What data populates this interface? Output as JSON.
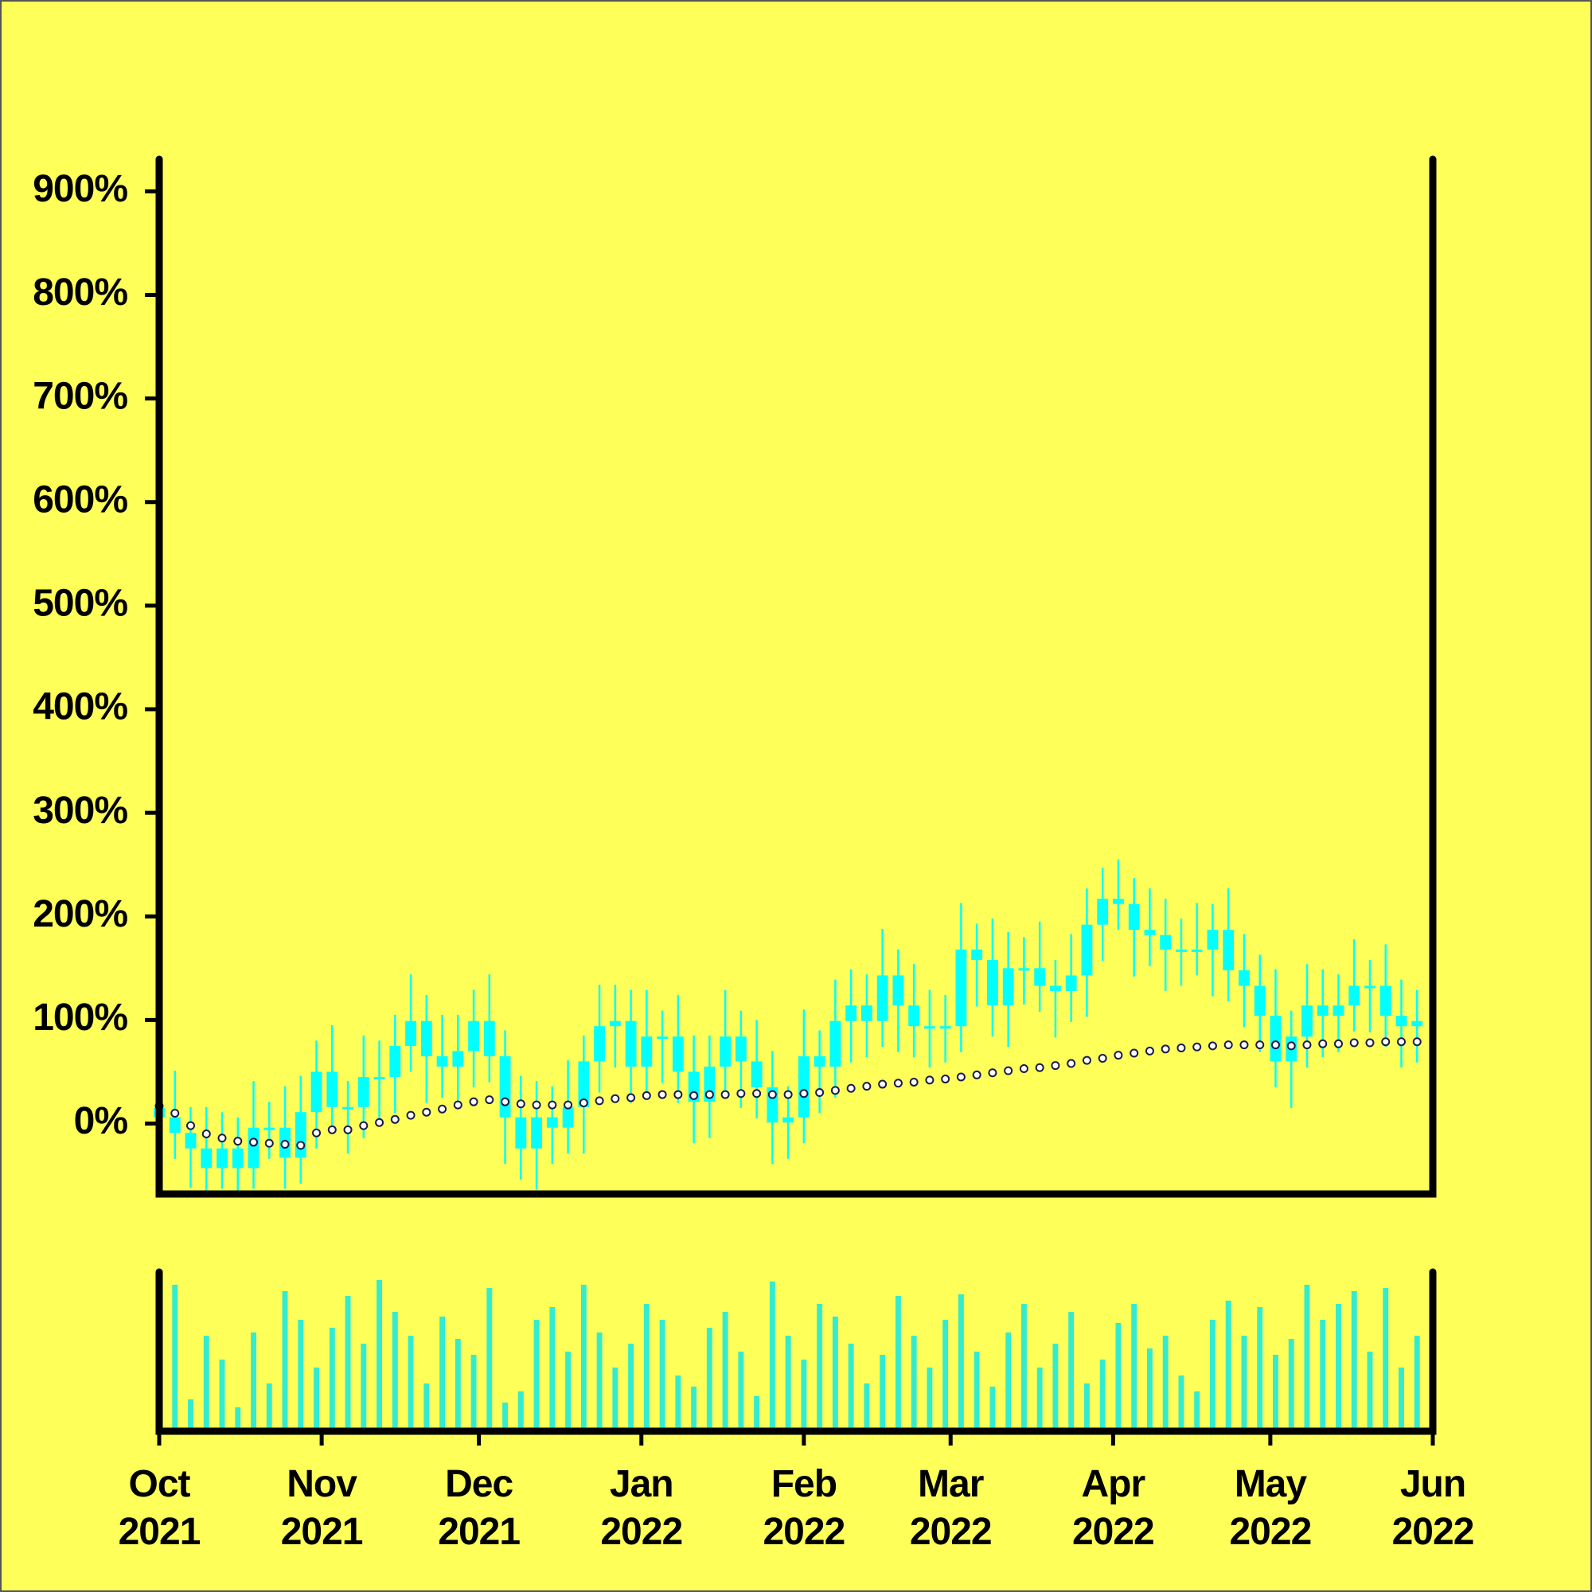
{
  "chart_data": {
    "type": "candlestick",
    "x": [
      0,
      3,
      6,
      9,
      12,
      15,
      18,
      21,
      24,
      27,
      30,
      33,
      36,
      39,
      42,
      45,
      48,
      51,
      54,
      57,
      60,
      63,
      66,
      69,
      72,
      75,
      78,
      81,
      84,
      87,
      90,
      93,
      96,
      99,
      102,
      105,
      108,
      111,
      114,
      117,
      120,
      123,
      126,
      129,
      132,
      135,
      138,
      141,
      144,
      147,
      150,
      153,
      156,
      159,
      162,
      165,
      168,
      171,
      174,
      177,
      180,
      183,
      186,
      189,
      192,
      195,
      198,
      201,
      204,
      207,
      210,
      213,
      216,
      219,
      222,
      225,
      228,
      231,
      234,
      237,
      240
    ],
    "open": [
      15,
      6,
      -9,
      -24,
      -43,
      -24,
      -43,
      -4,
      -4,
      -33,
      11,
      50,
      16,
      16,
      45,
      45,
      75,
      99,
      65,
      55,
      70,
      99,
      65,
      6,
      -24,
      6,
      -4,
      16,
      60,
      94,
      99,
      55,
      84,
      84,
      50,
      21,
      55,
      84,
      60,
      35,
      1,
      6,
      65,
      55,
      99,
      114,
      99,
      143,
      114,
      94,
      94,
      94,
      168,
      158,
      114,
      150,
      150,
      133,
      128,
      143,
      192,
      217,
      212,
      187,
      182,
      168,
      168,
      168,
      187,
      148,
      133,
      104,
      60,
      84,
      114,
      104,
      114,
      133,
      133,
      104,
      94
    ],
    "high": [
      45,
      51,
      16,
      16,
      11,
      6,
      41,
      21,
      36,
      46,
      80,
      95,
      41,
      85,
      80,
      105,
      144,
      124,
      105,
      105,
      129,
      144,
      90,
      46,
      41,
      36,
      61,
      85,
      134,
      134,
      129,
      129,
      109,
      124,
      85,
      85,
      129,
      109,
      100,
      70,
      36,
      110,
      90,
      139,
      149,
      144,
      188,
      168,
      154,
      129,
      124,
      213,
      193,
      198,
      185,
      180,
      195,
      158,
      183,
      227,
      247,
      255,
      237,
      227,
      217,
      198,
      213,
      212,
      227,
      183,
      163,
      149,
      109,
      154,
      149,
      144,
      178,
      158,
      173,
      139,
      129
    ],
    "low": [
      -29,
      -34,
      -62,
      -65,
      -63,
      -65,
      -63,
      -34,
      -63,
      -58,
      -24,
      -9,
      -29,
      -14,
      5,
      10,
      50,
      20,
      25,
      15,
      35,
      40,
      -39,
      -54,
      -64,
      -39,
      -29,
      -29,
      30,
      54,
      20,
      30,
      39,
      20,
      -19,
      -14,
      30,
      15,
      5,
      -39,
      -34,
      -19,
      10,
      25,
      59,
      64,
      74,
      69,
      64,
      54,
      59,
      69,
      113,
      84,
      74,
      115,
      108,
      83,
      98,
      103,
      157,
      187,
      142,
      152,
      128,
      133,
      143,
      123,
      118,
      93,
      69,
      35,
      15,
      54,
      64,
      69,
      89,
      88,
      74,
      54,
      59
    ],
    "close": [
      6,
      -9,
      -24,
      -43,
      -24,
      -43,
      -4,
      -4,
      -33,
      11,
      50,
      16,
      16,
      45,
      45,
      75,
      99,
      65,
      55,
      70,
      99,
      65,
      6,
      -24,
      6,
      -4,
      16,
      60,
      94,
      99,
      55,
      84,
      84,
      50,
      21,
      55,
      84,
      60,
      35,
      1,
      6,
      65,
      55,
      99,
      114,
      99,
      143,
      114,
      94,
      94,
      94,
      168,
      158,
      114,
      150,
      150,
      133,
      128,
      143,
      192,
      217,
      212,
      187,
      182,
      168,
      168,
      168,
      187,
      148,
      133,
      104,
      60,
      84,
      114,
      104,
      114,
      133,
      133,
      104,
      94,
      99
    ],
    "moving_average": [
      17,
      10,
      -2,
      -10,
      -14,
      -17,
      -18,
      -19,
      -20,
      -21,
      -9,
      -6,
      -6,
      -2,
      1,
      4,
      8,
      11,
      14,
      18,
      21,
      23,
      21,
      19,
      18,
      18,
      18,
      20,
      22,
      24,
      25,
      27,
      28,
      28,
      27,
      28,
      28,
      29,
      29,
      28,
      28,
      29,
      30,
      32,
      34,
      36,
      38,
      39,
      40,
      42,
      43,
      45,
      47,
      49,
      51,
      53,
      54,
      56,
      58,
      61,
      63,
      66,
      68,
      70,
      72,
      73,
      74,
      75,
      76,
      76,
      76,
      76,
      75,
      76,
      77,
      77,
      78,
      78,
      79,
      79,
      79
    ],
    "volume": [
      50,
      92,
      20,
      60,
      45,
      15,
      62,
      30,
      88,
      70,
      40,
      65,
      85,
      55,
      95,
      75,
      60,
      30,
      72,
      58,
      48,
      90,
      18,
      25,
      70,
      78,
      50,
      92,
      62,
      40,
      55,
      80,
      70,
      35,
      28,
      65,
      75,
      50,
      22,
      94,
      60,
      45,
      80,
      72,
      55,
      30,
      48,
      85,
      60,
      40,
      70,
      86,
      50,
      28,
      62,
      80,
      40,
      55,
      75,
      30,
      45,
      68,
      80,
      52,
      60,
      35,
      25,
      70,
      82,
      60,
      78,
      48,
      58,
      92,
      70,
      80,
      88,
      50,
      90,
      40,
      60
    ],
    "candle_color": "#00ffff",
    "volume_color": "#33ecd0",
    "ma_fill": "#ffffff",
    "ma_stroke": "#1a1a4a",
    "xlim": [
      0,
      243
    ],
    "xticks": [
      {
        "value": 0,
        "label": "Oct\n2021"
      },
      {
        "value": 31,
        "label": "Nov\n2021"
      },
      {
        "value": 61,
        "label": "Dec\n2021"
      },
      {
        "value": 92,
        "label": "Jan\n2022"
      },
      {
        "value": 123,
        "label": "Feb\n2022"
      },
      {
        "value": 151,
        "label": "Mar\n2022"
      },
      {
        "value": 182,
        "label": "Apr\n2022"
      },
      {
        "value": 212,
        "label": "May\n2022"
      },
      {
        "value": 243,
        "label": "Jun\n2022"
      }
    ],
    "ylim": [
      -68,
      931
    ],
    "yticks": [
      {
        "value": 0,
        "label": "0%"
      },
      {
        "value": 100,
        "label": "100%"
      },
      {
        "value": 200,
        "label": "200%"
      },
      {
        "value": 300,
        "label": "300%"
      },
      {
        "value": 400,
        "label": "400%"
      },
      {
        "value": 500,
        "label": "500%"
      },
      {
        "value": 600,
        "label": "600%"
      },
      {
        "value": 700,
        "label": "700%"
      },
      {
        "value": 800,
        "label": "800%"
      },
      {
        "value": 900,
        "label": "900%"
      }
    ],
    "volume_ylim": [
      0,
      100
    ]
  }
}
